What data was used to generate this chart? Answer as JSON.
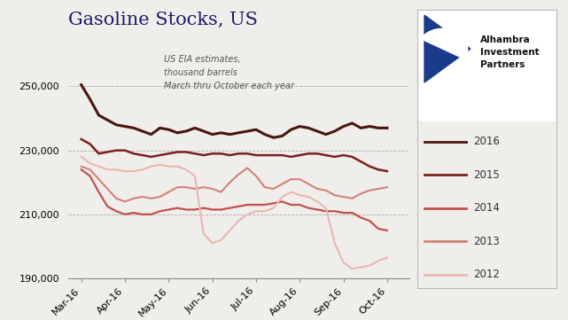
{
  "title": "Gasoline Stocks, US",
  "subtitle": "US EIA estimates,\nthousand barrels\nMarch thru October each year",
  "ylim": [
    190000,
    262000
  ],
  "yticks": [
    190000,
    210000,
    230000,
    250000
  ],
  "x_labels": [
    "Mar-16",
    "Apr-16",
    "May-16",
    "Jun-16",
    "Jul-16",
    "Aug-16",
    "Sep-16",
    "Oct-16"
  ],
  "background_color": "#f0eeea",
  "series": {
    "2016": {
      "color": "#4a1510",
      "linewidth": 2.2,
      "data": [
        250500,
        246000,
        241000,
        239500,
        238000,
        237500,
        237000,
        236000,
        235000,
        237000,
        236500,
        235500,
        236000,
        237000,
        236000,
        235000,
        235500,
        235000,
        235500,
        236000,
        236500,
        235000,
        234000,
        234500,
        236500,
        237500,
        237000,
        236000,
        235000,
        236000,
        237500,
        238500,
        237000,
        237500,
        237000,
        237000
      ]
    },
    "2015": {
      "color": "#7b2020",
      "linewidth": 1.8,
      "data": [
        233500,
        232000,
        229000,
        229500,
        230000,
        230000,
        229000,
        228500,
        228000,
        228500,
        229000,
        229500,
        229500,
        229000,
        228500,
        229000,
        229000,
        228500,
        229000,
        229000,
        228500,
        228500,
        228500,
        228500,
        228000,
        228500,
        229000,
        229000,
        228500,
        228000,
        228500,
        228000,
        226500,
        225000,
        224000,
        223500
      ]
    },
    "2014": {
      "color": "#bf5050",
      "linewidth": 1.6,
      "data": [
        224000,
        222000,
        217000,
        212500,
        211000,
        210000,
        210500,
        210000,
        210000,
        211000,
        211500,
        212000,
        211500,
        211500,
        212000,
        211500,
        211500,
        212000,
        212500,
        213000,
        213000,
        213000,
        213500,
        214000,
        213000,
        213000,
        212000,
        211500,
        211000,
        211000,
        210500,
        210500,
        209000,
        208000,
        205500,
        205000
      ]
    },
    "2013": {
      "color": "#d4807a",
      "linewidth": 1.5,
      "data": [
        225000,
        224000,
        221000,
        218000,
        215000,
        214000,
        215000,
        215500,
        215000,
        215500,
        217000,
        218500,
        218500,
        218000,
        218500,
        218000,
        217000,
        220000,
        222500,
        224500,
        222000,
        218500,
        218000,
        219500,
        221000,
        221000,
        219500,
        218000,
        217500,
        216000,
        215500,
        215000,
        216500,
        217500,
        218000,
        218500
      ]
    },
    "2012": {
      "color": "#e8b8b0",
      "linewidth": 1.5,
      "data": [
        228000,
        226000,
        225000,
        224000,
        224000,
        223500,
        223500,
        224000,
        225000,
        225500,
        225000,
        225000,
        224000,
        222000,
        204000,
        201000,
        202000,
        205000,
        208000,
        210000,
        211000,
        211000,
        212000,
        215500,
        217000,
        216000,
        215500,
        214000,
        212000,
        201000,
        195000,
        193000,
        193500,
        194000,
        195500,
        196500
      ]
    }
  },
  "legend_labels": [
    "2016",
    "2015",
    "2014",
    "2013",
    "2012"
  ],
  "legend_colors": [
    "#4a1510",
    "#7b2020",
    "#bf5050",
    "#d4807a",
    "#e8b8b0"
  ],
  "logo_triangle_color": "#1a3a8a"
}
